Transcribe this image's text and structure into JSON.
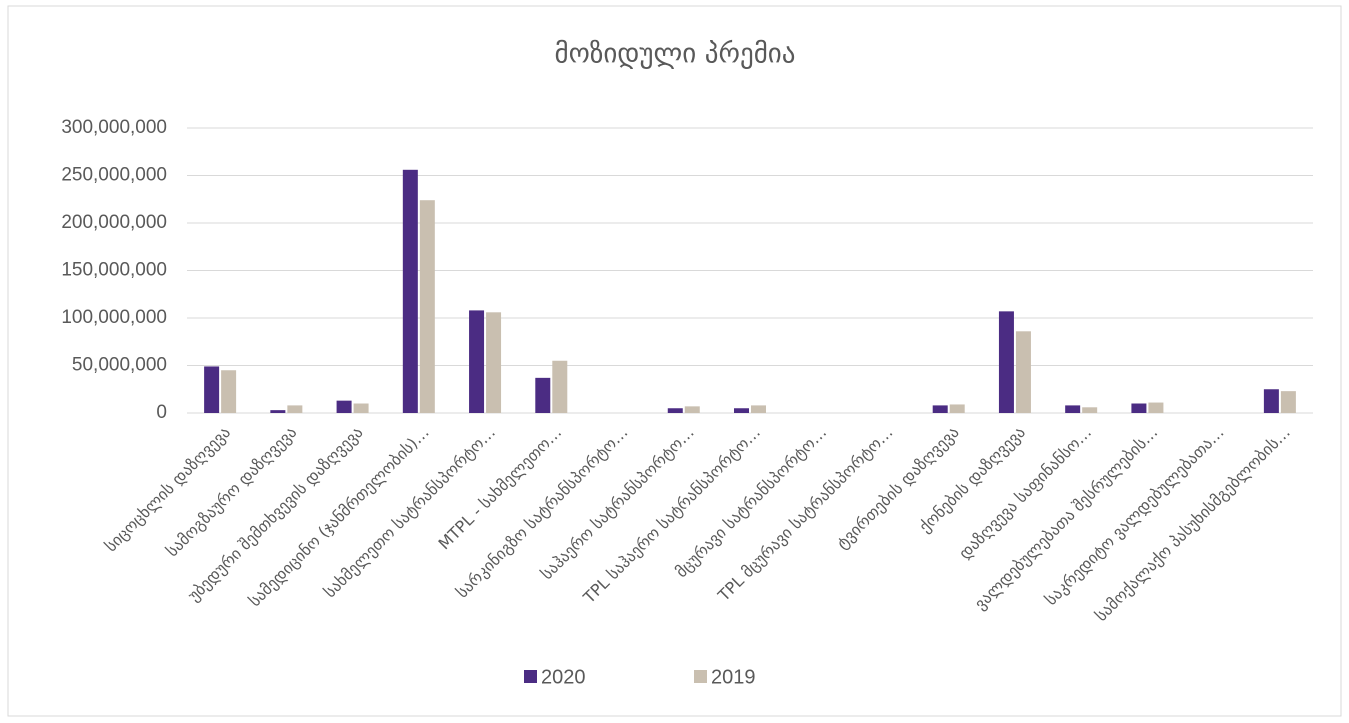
{
  "chart_data": {
    "type": "bar",
    "title": "მოზიდული პრემია",
    "categories": [
      "სიცოცხლის დაზღვევა",
      "სამოგზაურო დაზღვევა",
      "უბედური შემთხვევის დაზღვევა",
      "სამედიცინო (ჯანმრთელობის)…",
      "სახმელეთო სატრანსპორტო…",
      "MTPL - სახმელეთო…",
      "სარკინიგზო სატრანსპორტო…",
      "საჰაერო სატრანსპორტო…",
      "TPL საჰაერო სატრანსპორტო…",
      "მცურავი სატრანსპორტო…",
      "TPL მცურავი სატრანსპორტო…",
      "ტვირთების დაზღვევა",
      "ქონების დაზღვევა",
      "დაზღვევა საფინანსო…",
      "ვალდებულებათა შესრულების…",
      "საკრედიტო ვალდებულებათა…",
      "სამოქალაქო პასუხისმგებლობის…"
    ],
    "series": [
      {
        "name": "2020",
        "color": "#4b2c83",
        "values": [
          49000000,
          3000000,
          13000000,
          256000000,
          108000000,
          37000000,
          0,
          5000000,
          5000000,
          0,
          0,
          8000000,
          107000000,
          8000000,
          10000000,
          0,
          25000000
        ]
      },
      {
        "name": "2019",
        "color": "#c9bfb0",
        "values": [
          45000000,
          8000000,
          10000000,
          224000000,
          106000000,
          55000000,
          0,
          7000000,
          8000000,
          0,
          0,
          9000000,
          86000000,
          6000000,
          11000000,
          0,
          23000000
        ]
      }
    ],
    "ylim": [
      0,
      300000000
    ],
    "yticks": [
      0,
      {
        "value": 50000000,
        "label": "50,000,000"
      },
      {
        "value": 100000000,
        "label": "100,000,000"
      },
      {
        "value": 150000000,
        "label": "150,000,000"
      },
      {
        "value": 200000000,
        "label": "200,000,000"
      },
      {
        "value": 250000000,
        "label": "250,000,000"
      },
      {
        "value": 300000000,
        "label": "300,000,000"
      }
    ],
    "grid": true,
    "legend": "bottom"
  }
}
